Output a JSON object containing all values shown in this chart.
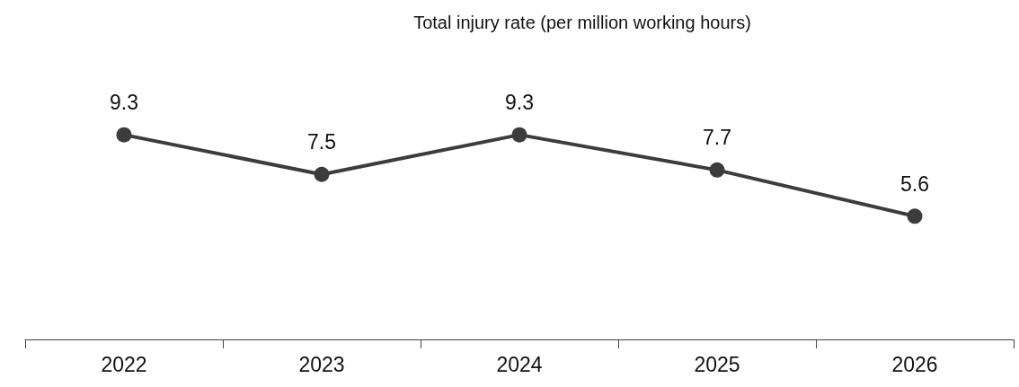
{
  "chart_data": {
    "type": "line",
    "title": "Total injury rate (per million working hours)",
    "categories": [
      "2022",
      "2023",
      "2024",
      "2025",
      "2026"
    ],
    "series": [
      {
        "color": "#3c3c3c",
        "values": [
          9.3,
          7.5,
          9.3,
          7.7,
          5.6
        ]
      }
    ],
    "data_labels": true,
    "marker": "circle",
    "line_style": "solid",
    "grid": false,
    "tick_labels": "x"
  }
}
